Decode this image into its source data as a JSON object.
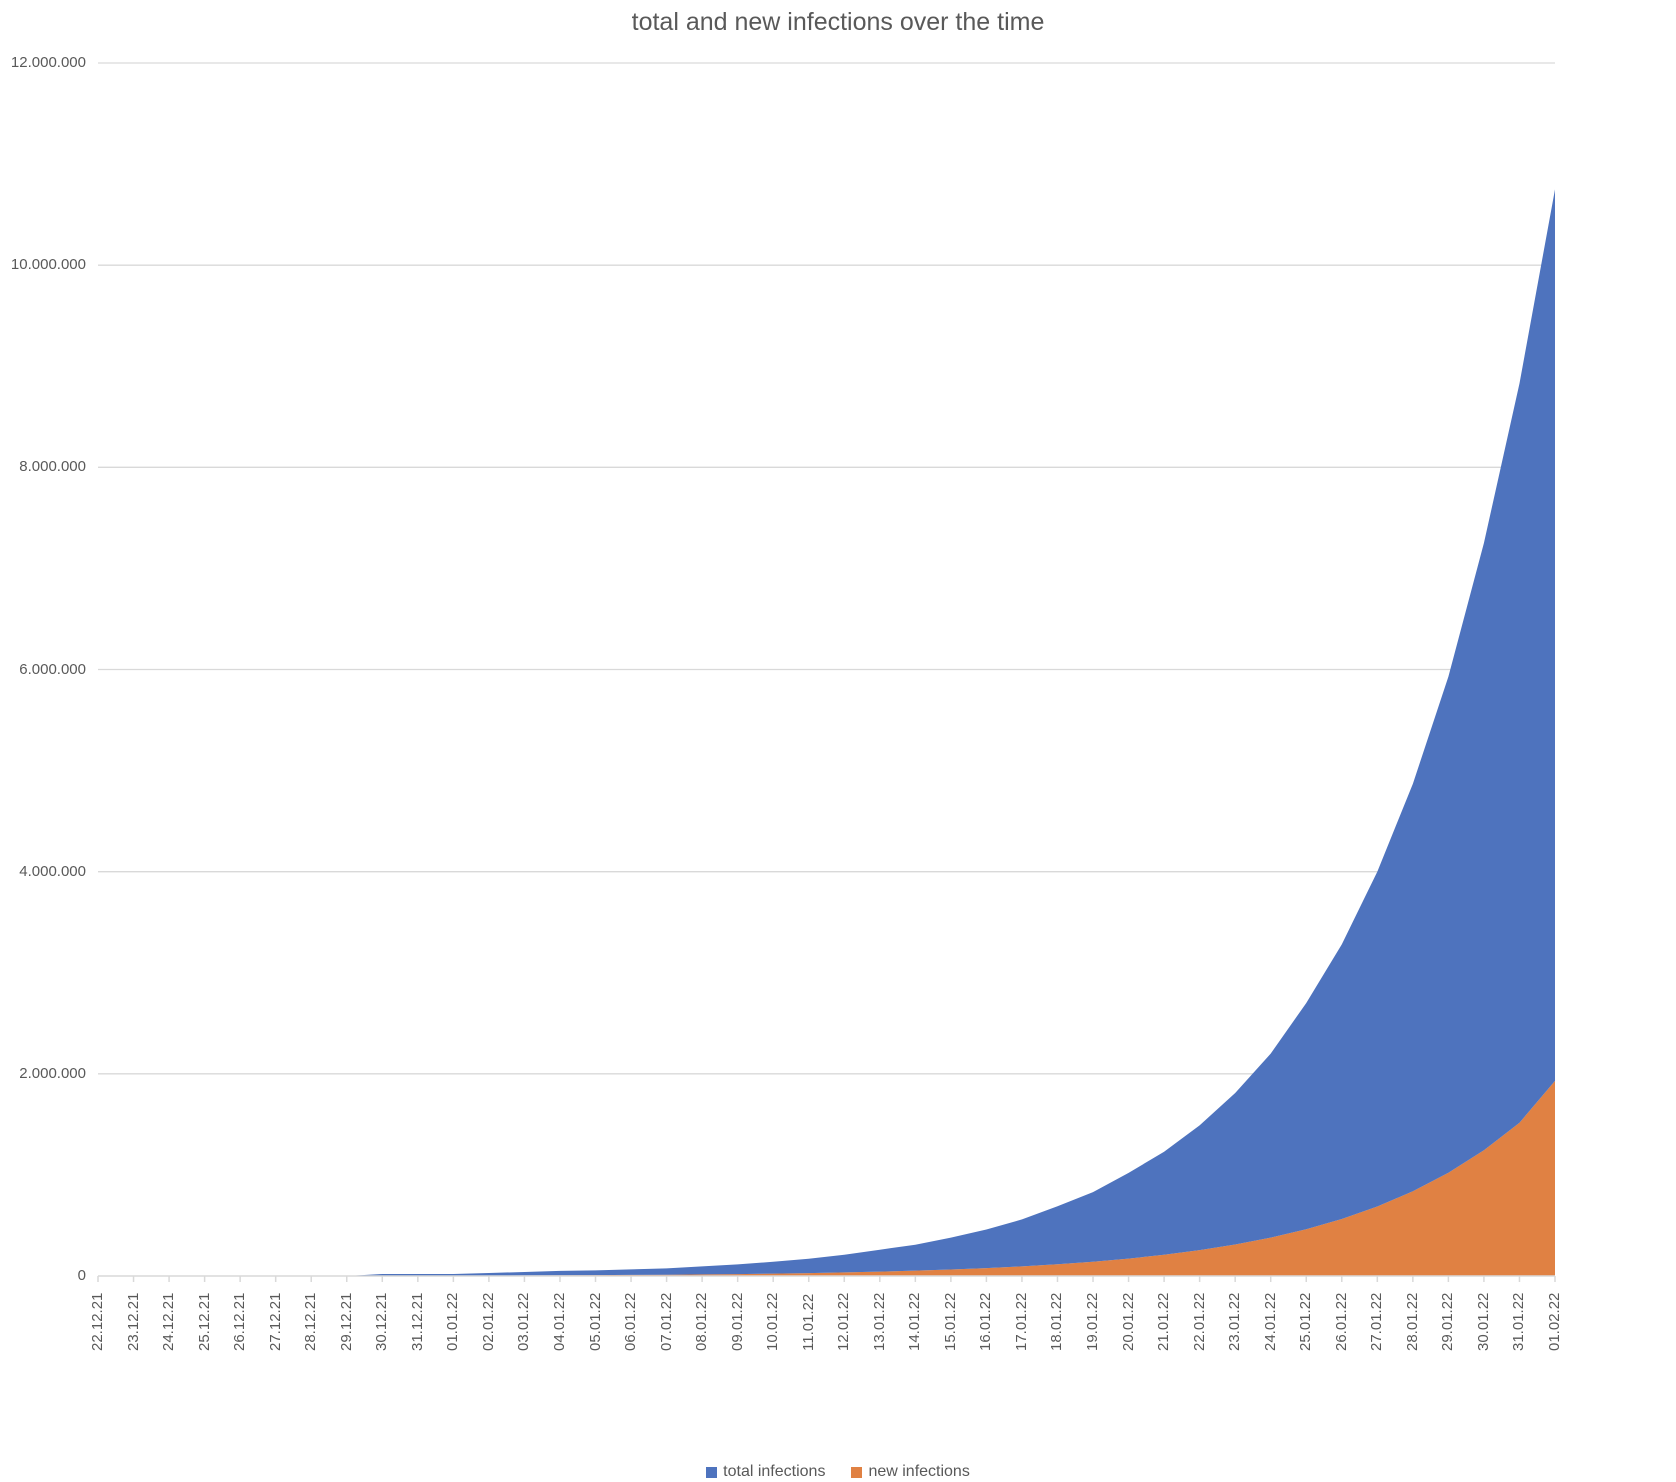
{
  "chart_data": {
    "type": "area",
    "stacked": true,
    "title": "total and new infections over the time",
    "xlabel": "",
    "ylabel": "",
    "ylim": [
      0,
      12000000
    ],
    "yticks": [
      0,
      2000000,
      4000000,
      6000000,
      8000000,
      10000000,
      12000000
    ],
    "ytick_labels": [
      "0",
      "2.000.000",
      "4.000.000",
      "6.000.000",
      "8.000.000",
      "10.000.000",
      "12.000.000"
    ],
    "grid": true,
    "legend_position": "bottom",
    "categories": [
      "22.12.21",
      "23.12.21",
      "24.12.21",
      "25.12.21",
      "26.12.21",
      "27.12.21",
      "28.12.21",
      "29.12.21",
      "30.12.21",
      "31.12.21",
      "01.01.22",
      "02.01.22",
      "03.01.22",
      "04.01.22",
      "05.01.22",
      "06.01.22",
      "07.01.22",
      "08.01.22",
      "09.01.22",
      "10.01.22",
      "11.01.22",
      "12.01.22",
      "13.01.22",
      "14.01.22",
      "15.01.22",
      "16.01.22",
      "17.01.22",
      "18.01.22",
      "19.01.22",
      "20.01.22",
      "21.01.22",
      "22.01.22",
      "23.01.22",
      "24.01.22",
      "25.01.22",
      "26.01.22",
      "27.01.22",
      "28.01.22",
      "29.01.22",
      "30.01.22",
      "31.01.22",
      "01.02.22"
    ],
    "series": [
      {
        "name": "new infections",
        "color": "#E08143",
        "values": [
          0,
          0,
          0,
          0,
          0,
          0,
          0,
          0,
          3000,
          3000,
          3000,
          5000,
          6000,
          8000,
          9000,
          11000,
          13000,
          16000,
          19000,
          24000,
          29000,
          36000,
          44000,
          53000,
          64000,
          78000,
          95000,
          116000,
          141000,
          172000,
          210000,
          256000,
          312000,
          380000,
          463000,
          564000,
          688000,
          838000,
          1021000,
          1244000,
          1517000,
          1930000
        ]
      },
      {
        "name": "total infections",
        "color": "#4E73BE",
        "values": [
          0,
          0,
          0,
          0,
          0,
          0,
          0,
          0,
          17000,
          17000,
          17000,
          25000,
          34000,
          42000,
          46000,
          54000,
          62000,
          79000,
          96000,
          116000,
          141000,
          174000,
          216000,
          257000,
          316000,
          382000,
          465000,
          574000,
          689000,
          848000,
          1020000,
          1234000,
          1498000,
          1820000,
          2237000,
          2716000,
          3312000,
          4032000,
          4909000,
          6006000,
          7313000,
          8820000
        ]
      }
    ]
  },
  "legend": {
    "items": [
      {
        "label": "total infections",
        "color": "#4E73BE"
      },
      {
        "label": "new infections",
        "color": "#E08143"
      }
    ]
  }
}
